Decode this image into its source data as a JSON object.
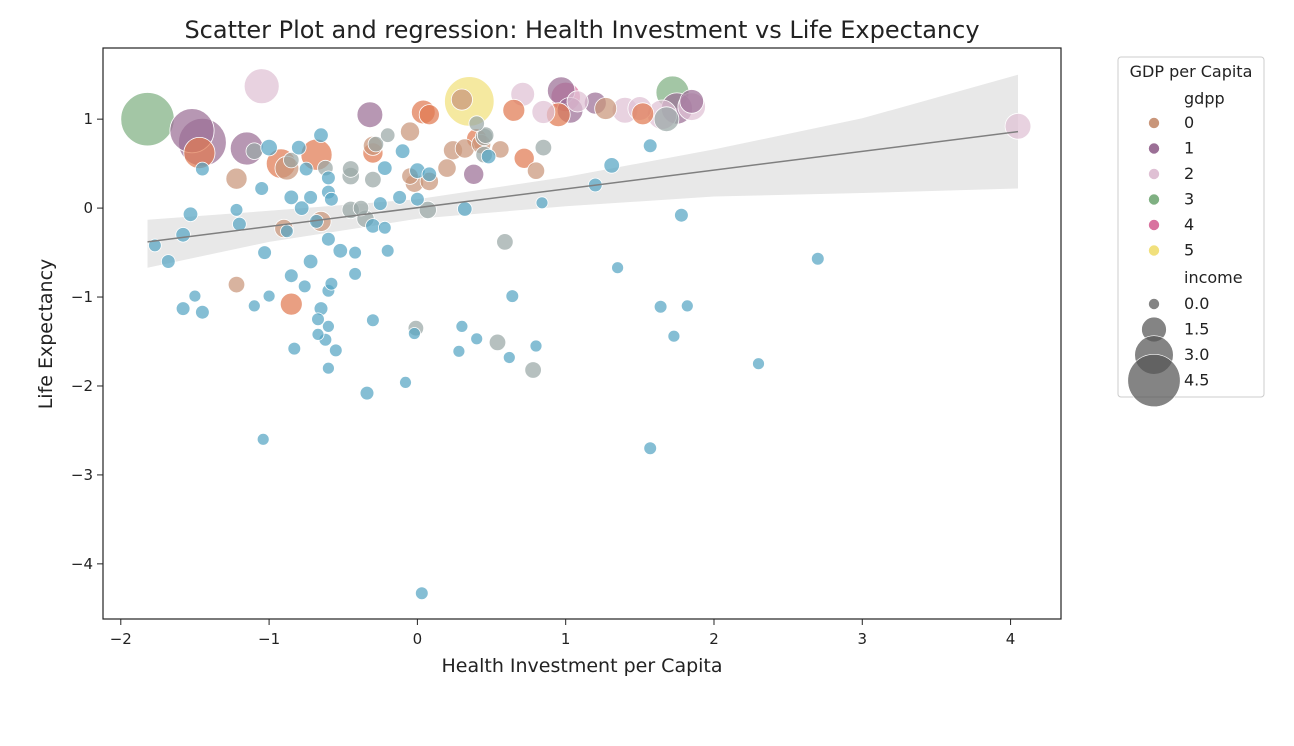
{
  "chart_data": {
    "type": "scatter",
    "title": "Scatter Plot and regression: Health Investment vs Life Expectancy",
    "xlabel": "Health Investment per Capita",
    "ylabel": "Life Expectancy",
    "xlim": [
      -2.12,
      4.34
    ],
    "ylim": [
      -4.62,
      1.8
    ],
    "xticks": [
      -2,
      -1,
      0,
      1,
      2,
      3,
      4
    ],
    "yticks": [
      -4,
      -3,
      -2,
      -1,
      0,
      1
    ],
    "grid": false,
    "legend": {
      "title": "GDP per Capita",
      "placement": "outside-right",
      "hue_label": "gdpp",
      "hue_entries": [
        {
          "label": "0",
          "color": "#c9967a"
        },
        {
          "label": "1",
          "color": "#9b6f96"
        },
        {
          "label": "2",
          "color": "#dfc0d4"
        },
        {
          "label": "3",
          "color": "#7fb082"
        },
        {
          "label": "4",
          "color": "#d9729f"
        },
        {
          "label": "5",
          "color": "#f1e07c"
        }
      ],
      "size_label": "income",
      "size_entries": [
        {
          "label": "0.0",
          "value": 0.0
        },
        {
          "label": "1.5",
          "value": 1.5
        },
        {
          "label": "3.0",
          "value": 3.0
        },
        {
          "label": "4.5",
          "value": 4.5
        }
      ]
    },
    "hue_colors": [
      "#56a5c4",
      "#9aa7a6",
      "#c9967a",
      "#9b6f96",
      "#dfc0d4",
      "#7fb082",
      "#d9729f",
      "#f1e07c",
      "#e07a52"
    ],
    "regression": {
      "line": [
        [
          -1.82,
          -0.38
        ],
        [
          4.05,
          0.86
        ]
      ],
      "ci_upper": [
        [
          -1.82,
          -0.13
        ],
        [
          -1.0,
          -0.03
        ],
        [
          0.0,
          0.1
        ],
        [
          1.0,
          0.35
        ],
        [
          2.0,
          0.66
        ],
        [
          3.0,
          1.01
        ],
        [
          4.05,
          1.5
        ]
      ],
      "ci_lower": [
        [
          -1.82,
          -0.67
        ],
        [
          -1.0,
          -0.38
        ],
        [
          0.0,
          -0.12
        ],
        [
          1.0,
          0.02
        ],
        [
          2.0,
          0.13
        ],
        [
          3.0,
          0.17
        ],
        [
          4.05,
          0.22
        ]
      ],
      "line_color": "#7f7f7f",
      "band_color": "#e8e8e8"
    },
    "points": [
      {
        "x": -1.82,
        "y": 1.0,
        "s": 4.6,
        "c": 5
      },
      {
        "x": -1.05,
        "y": 1.37,
        "s": 2.6,
        "c": 4
      },
      {
        "x": 0.35,
        "y": 1.2,
        "s": 4.2,
        "c": 7
      },
      {
        "x": 1.72,
        "y": 1.3,
        "s": 2.4,
        "c": 5
      },
      {
        "x": -1.52,
        "y": 0.87,
        "s": 3.6,
        "c": 3
      },
      {
        "x": -1.45,
        "y": 0.74,
        "s": 4.0,
        "c": 3
      },
      {
        "x": -1.15,
        "y": 0.67,
        "s": 2.4,
        "c": 3
      },
      {
        "x": -1.47,
        "y": 0.62,
        "s": 2.2,
        "c": 8
      },
      {
        "x": -1.22,
        "y": 0.33,
        "s": 1.1,
        "c": 2
      },
      {
        "x": -0.92,
        "y": 0.5,
        "s": 2.0,
        "c": 8
      },
      {
        "x": -0.88,
        "y": 0.45,
        "s": 1.4,
        "c": 2
      },
      {
        "x": -0.68,
        "y": 0.6,
        "s": 2.2,
        "c": 8
      },
      {
        "x": -0.32,
        "y": 1.05,
        "s": 1.6,
        "c": 3
      },
      {
        "x": 0.04,
        "y": 1.08,
        "s": 1.4,
        "c": 8
      },
      {
        "x": 0.08,
        "y": 1.05,
        "s": 1.0,
        "c": 8
      },
      {
        "x": -0.05,
        "y": 0.86,
        "s": 0.9,
        "c": 2
      },
      {
        "x": 0.3,
        "y": 1.22,
        "s": 1.1,
        "c": 2
      },
      {
        "x": 0.65,
        "y": 1.1,
        "s": 1.2,
        "c": 8
      },
      {
        "x": 0.71,
        "y": 1.28,
        "s": 1.4,
        "c": 4
      },
      {
        "x": 0.85,
        "y": 1.08,
        "s": 1.3,
        "c": 4
      },
      {
        "x": 0.97,
        "y": 1.32,
        "s": 1.8,
        "c": 3
      },
      {
        "x": 1.0,
        "y": 1.25,
        "s": 2.0,
        "c": 6
      },
      {
        "x": 0.95,
        "y": 1.05,
        "s": 1.4,
        "c": 8
      },
      {
        "x": 1.03,
        "y": 1.1,
        "s": 1.6,
        "c": 3
      },
      {
        "x": 1.08,
        "y": 1.2,
        "s": 1.1,
        "c": 4
      },
      {
        "x": 1.2,
        "y": 1.18,
        "s": 1.2,
        "c": 3
      },
      {
        "x": 1.27,
        "y": 1.12,
        "s": 1.2,
        "c": 2
      },
      {
        "x": 1.4,
        "y": 1.1,
        "s": 1.6,
        "c": 4
      },
      {
        "x": 1.5,
        "y": 1.12,
        "s": 1.4,
        "c": 4
      },
      {
        "x": 1.52,
        "y": 1.06,
        "s": 1.2,
        "c": 8
      },
      {
        "x": 1.65,
        "y": 1.05,
        "s": 2.0,
        "c": 4
      },
      {
        "x": 1.68,
        "y": 1.0,
        "s": 1.5,
        "c": 1
      },
      {
        "x": 1.75,
        "y": 1.12,
        "s": 2.2,
        "c": 3
      },
      {
        "x": 1.85,
        "y": 1.2,
        "s": 1.4,
        "c": 3
      },
      {
        "x": 1.85,
        "y": 1.14,
        "s": 1.8,
        "c": 4
      },
      {
        "x": 4.05,
        "y": 0.92,
        "s": 1.6,
        "c": 4
      },
      {
        "x": -0.3,
        "y": 0.7,
        "s": 0.9,
        "c": 2
      },
      {
        "x": -0.3,
        "y": 0.62,
        "s": 1.0,
        "c": 8
      },
      {
        "x": -0.05,
        "y": 0.36,
        "s": 0.6,
        "c": 2
      },
      {
        "x": -0.02,
        "y": 0.28,
        "s": 0.8,
        "c": 2
      },
      {
        "x": 0.08,
        "y": 0.3,
        "s": 0.8,
        "c": 2
      },
      {
        "x": 0.2,
        "y": 0.45,
        "s": 0.8,
        "c": 2
      },
      {
        "x": 0.24,
        "y": 0.65,
        "s": 0.9,
        "c": 2
      },
      {
        "x": 0.32,
        "y": 0.67,
        "s": 0.9,
        "c": 2
      },
      {
        "x": 0.4,
        "y": 0.78,
        "s": 1.0,
        "c": 8
      },
      {
        "x": 0.43,
        "y": 0.72,
        "s": 0.9,
        "c": 2
      },
      {
        "x": 0.38,
        "y": 0.38,
        "s": 1.0,
        "c": 3
      },
      {
        "x": 0.45,
        "y": 0.8,
        "s": 0.7,
        "c": 1
      },
      {
        "x": 0.45,
        "y": 0.6,
        "s": 0.6,
        "c": 1
      },
      {
        "x": 0.56,
        "y": 0.66,
        "s": 0.7,
        "c": 2
      },
      {
        "x": 0.72,
        "y": 0.56,
        "s": 1.0,
        "c": 8
      },
      {
        "x": 0.8,
        "y": 0.42,
        "s": 0.7,
        "c": 2
      },
      {
        "x": 0.85,
        "y": 0.68,
        "s": 0.6,
        "c": 1
      },
      {
        "x": 1.31,
        "y": 0.48,
        "s": 0.5,
        "c": 0
      },
      {
        "x": 1.57,
        "y": 0.7,
        "s": 0.3,
        "c": 0
      },
      {
        "x": 1.2,
        "y": 0.26,
        "s": 0.3,
        "c": 0
      },
      {
        "x": -0.65,
        "y": -0.15,
        "s": 1.0,
        "c": 2
      },
      {
        "x": -0.9,
        "y": -0.23,
        "s": 0.8,
        "c": 2
      },
      {
        "x": -1.22,
        "y": -0.86,
        "s": 0.6,
        "c": 2
      },
      {
        "x": -0.85,
        "y": -1.08,
        "s": 1.2,
        "c": 8
      },
      {
        "x": -1.45,
        "y": 0.44,
        "s": 0.3,
        "c": 0
      },
      {
        "x": -1.1,
        "y": 0.64,
        "s": 0.6,
        "c": 1
      },
      {
        "x": -1.0,
        "y": 0.68,
        "s": 0.6,
        "c": 0
      },
      {
        "x": -0.85,
        "y": 0.54,
        "s": 0.5,
        "c": 1
      },
      {
        "x": -0.8,
        "y": 0.68,
        "s": 0.4,
        "c": 0
      },
      {
        "x": -0.75,
        "y": 0.44,
        "s": 0.3,
        "c": 0
      },
      {
        "x": -0.65,
        "y": 0.82,
        "s": 0.4,
        "c": 0
      },
      {
        "x": -0.62,
        "y": 0.45,
        "s": 0.5,
        "c": 1
      },
      {
        "x": -0.6,
        "y": 0.34,
        "s": 0.3,
        "c": 0
      },
      {
        "x": -0.45,
        "y": 0.44,
        "s": 0.6,
        "c": 1
      },
      {
        "x": -0.45,
        "y": 0.36,
        "s": 0.7,
        "c": 1
      },
      {
        "x": -0.3,
        "y": 0.32,
        "s": 0.6,
        "c": 1
      },
      {
        "x": -0.28,
        "y": 0.72,
        "s": 0.5,
        "c": 1
      },
      {
        "x": -0.22,
        "y": 0.45,
        "s": 0.4,
        "c": 0
      },
      {
        "x": -0.2,
        "y": 0.82,
        "s": 0.4,
        "c": 1
      },
      {
        "x": -0.1,
        "y": 0.64,
        "s": 0.4,
        "c": 0
      },
      {
        "x": 0.0,
        "y": 0.42,
        "s": 0.5,
        "c": 0
      },
      {
        "x": 0.08,
        "y": 0.38,
        "s": 0.4,
        "c": 0
      },
      {
        "x": 0.4,
        "y": 0.95,
        "s": 0.5,
        "c": 1
      },
      {
        "x": 0.46,
        "y": 0.82,
        "s": 0.6,
        "c": 1
      },
      {
        "x": 0.48,
        "y": 0.58,
        "s": 0.4,
        "c": 0
      },
      {
        "x": 0.32,
        "y": -0.01,
        "s": 0.4,
        "c": 0
      },
      {
        "x": 0.0,
        "y": 0.1,
        "s": 0.3,
        "c": 0
      },
      {
        "x": -1.05,
        "y": 0.22,
        "s": 0.3,
        "c": 0
      },
      {
        "x": -0.85,
        "y": 0.12,
        "s": 0.4,
        "c": 0
      },
      {
        "x": -0.78,
        "y": 0.0,
        "s": 0.4,
        "c": 0
      },
      {
        "x": -0.72,
        "y": 0.12,
        "s": 0.3,
        "c": 0
      },
      {
        "x": -0.6,
        "y": 0.18,
        "s": 0.3,
        "c": 0
      },
      {
        "x": -0.58,
        "y": 0.1,
        "s": 0.3,
        "c": 0
      },
      {
        "x": -0.45,
        "y": -0.02,
        "s": 0.7,
        "c": 1
      },
      {
        "x": -0.38,
        "y": 0.0,
        "s": 0.5,
        "c": 1
      },
      {
        "x": -0.35,
        "y": -0.12,
        "s": 0.7,
        "c": 1
      },
      {
        "x": -0.3,
        "y": -0.2,
        "s": 0.4,
        "c": 0
      },
      {
        "x": -0.25,
        "y": 0.05,
        "s": 0.3,
        "c": 0
      },
      {
        "x": -0.22,
        "y": -0.22,
        "s": 0.2,
        "c": 0
      },
      {
        "x": 0.07,
        "y": -0.02,
        "s": 0.7,
        "c": 1
      },
      {
        "x": -1.53,
        "y": -0.07,
        "s": 0.4,
        "c": 0
      },
      {
        "x": -1.58,
        "y": -0.3,
        "s": 0.4,
        "c": 0
      },
      {
        "x": -1.2,
        "y": -0.18,
        "s": 0.3,
        "c": 0
      },
      {
        "x": -1.22,
        "y": -0.02,
        "s": 0.2,
        "c": 0
      },
      {
        "x": -1.77,
        "y": -0.42,
        "s": 0.2,
        "c": 0
      },
      {
        "x": -1.68,
        "y": -0.6,
        "s": 0.3,
        "c": 0
      },
      {
        "x": -1.03,
        "y": -0.5,
        "s": 0.3,
        "c": 0
      },
      {
        "x": -0.88,
        "y": -0.26,
        "s": 0.2,
        "c": 0
      },
      {
        "x": -0.72,
        "y": -0.6,
        "s": 0.4,
        "c": 0
      },
      {
        "x": -0.68,
        "y": -0.15,
        "s": 0.3,
        "c": 0
      },
      {
        "x": -0.6,
        "y": -0.35,
        "s": 0.3,
        "c": 0
      },
      {
        "x": -0.52,
        "y": -0.48,
        "s": 0.4,
        "c": 0
      },
      {
        "x": -0.42,
        "y": -0.5,
        "s": 0.2,
        "c": 0
      },
      {
        "x": -0.42,
        "y": -0.74,
        "s": 0.2,
        "c": 0
      },
      {
        "x": -0.2,
        "y": -0.48,
        "s": 0.2,
        "c": 0
      },
      {
        "x": -0.12,
        "y": 0.12,
        "s": 0.3,
        "c": 0
      },
      {
        "x": 0.59,
        "y": -0.38,
        "s": 0.6,
        "c": 1
      },
      {
        "x": 1.78,
        "y": -0.08,
        "s": 0.3,
        "c": 0
      },
      {
        "x": 2.7,
        "y": -0.57,
        "s": 0.2,
        "c": 0
      },
      {
        "x": -1.58,
        "y": -1.13,
        "s": 0.3,
        "c": 0
      },
      {
        "x": -1.5,
        "y": -0.99,
        "s": 0.1,
        "c": 0
      },
      {
        "x": -1.45,
        "y": -1.17,
        "s": 0.3,
        "c": 0
      },
      {
        "x": -1.1,
        "y": -1.1,
        "s": 0.1,
        "c": 0
      },
      {
        "x": -1.0,
        "y": -0.99,
        "s": 0.1,
        "c": 0
      },
      {
        "x": -0.85,
        "y": -0.76,
        "s": 0.3,
        "c": 0
      },
      {
        "x": -0.76,
        "y": -0.88,
        "s": 0.2,
        "c": 0
      },
      {
        "x": -0.65,
        "y": -1.13,
        "s": 0.3,
        "c": 0
      },
      {
        "x": -0.6,
        "y": -0.93,
        "s": 0.2,
        "c": 0
      },
      {
        "x": -0.58,
        "y": -0.85,
        "s": 0.2,
        "c": 0
      },
      {
        "x": -0.67,
        "y": -1.25,
        "s": 0.2,
        "c": 0
      },
      {
        "x": -0.6,
        "y": -1.33,
        "s": 0.1,
        "c": 0
      },
      {
        "x": -0.67,
        "y": -1.42,
        "s": 0.1,
        "c": 0
      },
      {
        "x": -0.62,
        "y": -1.48,
        "s": 0.2,
        "c": 0
      },
      {
        "x": -0.55,
        "y": -1.6,
        "s": 0.2,
        "c": 0
      },
      {
        "x": -0.83,
        "y": -1.58,
        "s": 0.2,
        "c": 0
      },
      {
        "x": -0.6,
        "y": -1.8,
        "s": 0.1,
        "c": 0
      },
      {
        "x": -0.3,
        "y": -1.26,
        "s": 0.2,
        "c": 0
      },
      {
        "x": -0.01,
        "y": -1.35,
        "s": 0.5,
        "c": 1
      },
      {
        "x": -0.02,
        "y": -1.41,
        "s": 0.1,
        "c": 0
      },
      {
        "x": 0.3,
        "y": -1.33,
        "s": 0.1,
        "c": 0
      },
      {
        "x": 0.4,
        "y": -1.47,
        "s": 0.1,
        "c": 0
      },
      {
        "x": 0.28,
        "y": -1.61,
        "s": 0.1,
        "c": 0
      },
      {
        "x": 0.54,
        "y": -1.51,
        "s": 0.6,
        "c": 1
      },
      {
        "x": 0.62,
        "y": -1.68,
        "s": 0.1,
        "c": 0
      },
      {
        "x": 0.64,
        "y": -0.99,
        "s": 0.2,
        "c": 0
      },
      {
        "x": 0.78,
        "y": -1.82,
        "s": 0.6,
        "c": 1
      },
      {
        "x": 0.8,
        "y": -1.55,
        "s": 0.1,
        "c": 0
      },
      {
        "x": 0.84,
        "y": 0.06,
        "s": 0.1,
        "c": 0
      },
      {
        "x": 1.35,
        "y": -0.67,
        "s": 0.1,
        "c": 0
      },
      {
        "x": 1.64,
        "y": -1.11,
        "s": 0.2,
        "c": 0
      },
      {
        "x": 1.73,
        "y": -1.44,
        "s": 0.1,
        "c": 0
      },
      {
        "x": 1.82,
        "y": -1.1,
        "s": 0.1,
        "c": 0
      },
      {
        "x": 2.3,
        "y": -1.75,
        "s": 0.1,
        "c": 0
      },
      {
        "x": -0.34,
        "y": -2.08,
        "s": 0.3,
        "c": 0
      },
      {
        "x": -0.08,
        "y": -1.96,
        "s": 0.1,
        "c": 0
      },
      {
        "x": -1.04,
        "y": -2.6,
        "s": 0.1,
        "c": 0
      },
      {
        "x": 1.57,
        "y": -2.7,
        "s": 0.2,
        "c": 0
      },
      {
        "x": 0.03,
        "y": -4.33,
        "s": 0.2,
        "c": 0
      }
    ]
  }
}
